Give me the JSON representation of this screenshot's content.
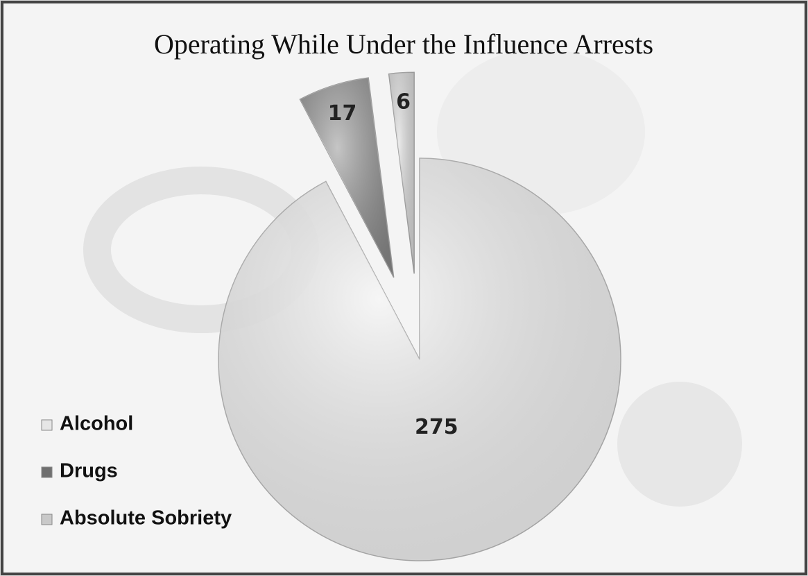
{
  "chart_data": {
    "type": "pie",
    "title": "Operating While Under the Influence Arrests",
    "categories": [
      "Alcohol",
      "Drugs",
      "Absolute Sobriety"
    ],
    "values": [
      275,
      17,
      6
    ],
    "colors": [
      "#e6e6e6",
      "#6f6f6f",
      "#c9c9c9"
    ],
    "legend": "left"
  }
}
